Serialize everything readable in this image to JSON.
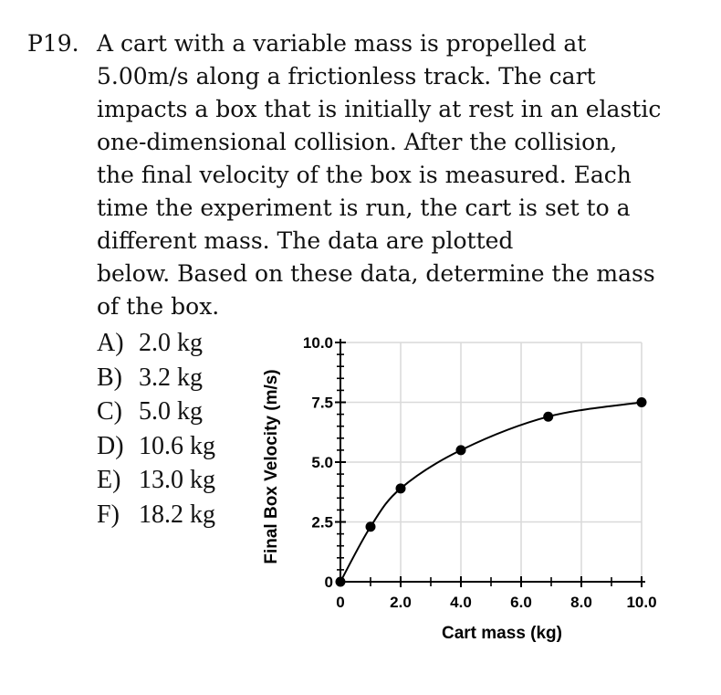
{
  "problem": {
    "number": "P19.",
    "lines": [
      "A cart with a variable mass is propelled at",
      "5.00m/s along a frictionless track.  The cart",
      "impacts a box that is initially at rest in an elastic",
      "one-dimensional collision.  After the collision,",
      "the final velocity of the box is measured. Each",
      "time the experiment is run, the cart is set to a",
      "different mass.  The data are plotted",
      "below.  Based on these data, determine the mass",
      "of the box."
    ]
  },
  "choices": [
    {
      "letter": "A)",
      "text": "2.0 kg"
    },
    {
      "letter": "B)",
      "text": "3.2 kg"
    },
    {
      "letter": "C)",
      "text": "5.0 kg"
    },
    {
      "letter": "D)",
      "text": "10.6 kg"
    },
    {
      "letter": "E)",
      "text": "13.0 kg"
    },
    {
      "letter": "F)",
      "text": "18.2 kg"
    }
  ],
  "chart_data": {
    "type": "scatter",
    "title": "",
    "xlabel": "Cart mass (kg)",
    "ylabel": "Final Box Velocity (m/s)",
    "xlim": [
      0,
      10
    ],
    "ylim": [
      0,
      10
    ],
    "x_ticks": [
      0,
      2,
      4,
      6,
      8,
      10
    ],
    "x_tick_labels": [
      "0",
      "2.0",
      "4.0",
      "6.0",
      "8.0",
      "10.0"
    ],
    "y_ticks": [
      0,
      2.5,
      5,
      7.5,
      10
    ],
    "y_tick_labels": [
      "0",
      "2.5",
      "5.0",
      "7.5",
      "10.0"
    ],
    "grid": true,
    "fit_curve": true,
    "series": [
      {
        "x": [
          0,
          1.0,
          2.0,
          4.0,
          6.9,
          10.0
        ],
        "y": [
          0,
          2.3,
          3.9,
          5.5,
          6.9,
          7.5
        ]
      }
    ],
    "colors": {
      "axis": "#000000",
      "grid": "#d9d9d9",
      "points": "#000000"
    }
  }
}
